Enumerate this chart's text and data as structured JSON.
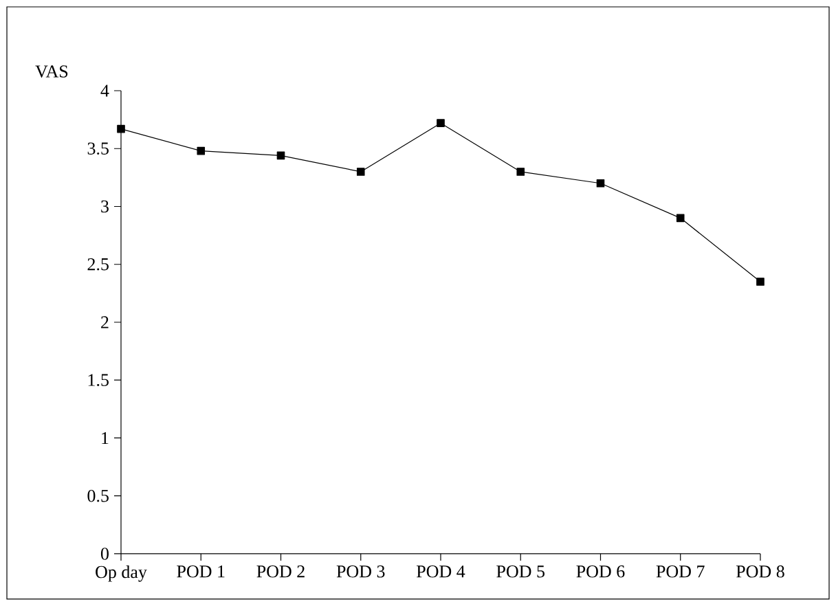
{
  "chart_data": {
    "type": "line",
    "ylabel": "VAS",
    "categories": [
      "Op day",
      "POD 1",
      "POD 2",
      "POD 3",
      "POD 4",
      "POD 5",
      "POD 6",
      "POD 7",
      "POD 8"
    ],
    "series": [
      {
        "color": "#000000",
        "values": [
          3.67,
          3.48,
          3.44,
          3.3,
          3.72,
          3.3,
          3.2,
          2.9,
          2.35
        ]
      }
    ],
    "ylim": [
      0,
      4
    ],
    "yticks": [
      0,
      0.5,
      1,
      1.5,
      2,
      2.5,
      3,
      3.5,
      4
    ],
    "grid": false,
    "marker": "square",
    "line_style": "solid"
  }
}
